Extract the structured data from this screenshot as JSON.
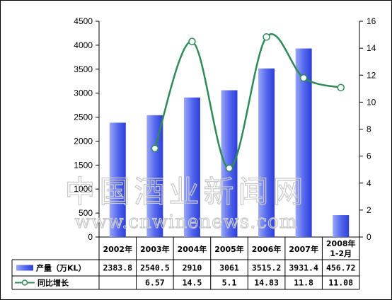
{
  "chart_data": {
    "type": "bar",
    "categories": [
      "2002年",
      "2003年",
      "2004年",
      "2005年",
      "2006年",
      "2007年",
      "2008年\n1-2月"
    ],
    "series": [
      {
        "name": "产量（万KL）",
        "kind": "bar",
        "axis": "left",
        "values": [
          2383.8,
          2540.5,
          2910,
          3061,
          3515.2,
          3931.4,
          456.72
        ],
        "labels": [
          "2383.8",
          "2540.5",
          "2910",
          "3061",
          "3515.2",
          "3931.4",
          "456.72"
        ],
        "color": "#5b6ef0"
      },
      {
        "name": "同比增长",
        "kind": "line",
        "axis": "right",
        "values": [
          null,
          6.57,
          14.5,
          5.1,
          14.83,
          11.8,
          11.08
        ],
        "labels": [
          "",
          "6.57",
          "14.5",
          "5.1",
          "14.83",
          "11.8",
          "11.08"
        ],
        "color": "#2e8b57"
      }
    ],
    "y_left": {
      "ylim": [
        0,
        4500
      ],
      "ticks": [
        "0",
        "500",
        "1000",
        "1500",
        "2000",
        "2500",
        "3000",
        "3500",
        "4000",
        "4500"
      ]
    },
    "y_right": {
      "ylim": [
        0,
        16
      ],
      "ticks": [
        "0",
        "2",
        "4",
        "6",
        "8",
        "10",
        "12",
        "14",
        "16"
      ]
    },
    "grid": false,
    "legend": "data-table"
  },
  "watermark": {
    "title": "中国酒业新闻网",
    "url": "www.cnwinenews.com"
  }
}
